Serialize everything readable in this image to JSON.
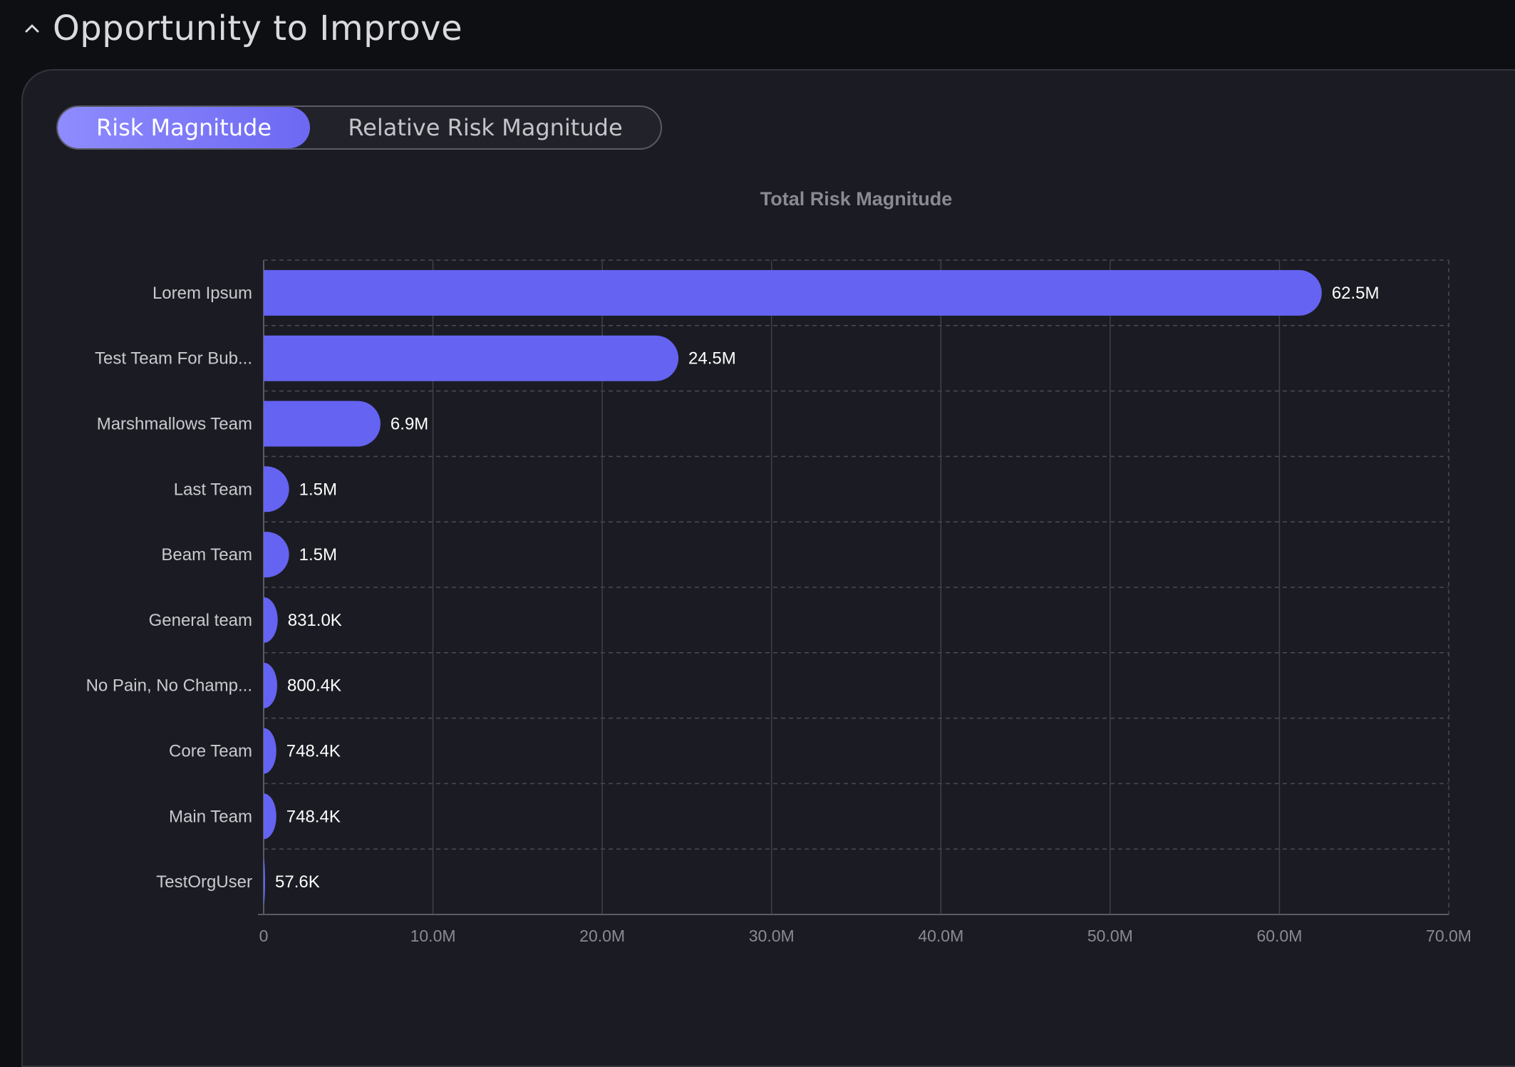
{
  "section": {
    "title": "Opportunity to Improve",
    "collapse_icon": "chevron-up-icon"
  },
  "toggle": {
    "options": [
      {
        "label": "Risk Magnitude",
        "active": true
      },
      {
        "label": "Relative Risk Magnitude",
        "active": false
      }
    ]
  },
  "colors": {
    "bar": "#6563f2",
    "page_bg": "#0e0f13",
    "panel_bg": "#1b1c23",
    "toggle_active": "#7f7bfa"
  },
  "chart_data": {
    "type": "bar",
    "orientation": "horizontal",
    "title": "Total Risk Magnitude",
    "categories": [
      "Lorem Ipsum",
      "Test Team For Bub...",
      "Marshmallows Team",
      "Last Team",
      "Beam Team",
      "General team",
      "No Pain, No Champ...",
      "Core Team",
      "Main Team",
      "TestOrgUser"
    ],
    "values": [
      62500000,
      24500000,
      6900000,
      1500000,
      1500000,
      831000,
      800400,
      748400,
      748400,
      57600
    ],
    "value_labels": [
      "62.5M",
      "24.5M",
      "6.9M",
      "1.5M",
      "1.5M",
      "831.0K",
      "800.4K",
      "748.4K",
      "748.4K",
      "57.6K"
    ],
    "xlim": [
      0,
      70000000
    ],
    "x_ticks": [
      0,
      10000000,
      20000000,
      30000000,
      40000000,
      50000000,
      60000000,
      70000000
    ],
    "x_tick_labels": [
      "0",
      "10.0M",
      "20.0M",
      "30.0M",
      "40.0M",
      "50.0M",
      "60.0M",
      "70.0M"
    ],
    "grid": true,
    "grid_style": "dashed",
    "xlabel": "",
    "ylabel": ""
  }
}
